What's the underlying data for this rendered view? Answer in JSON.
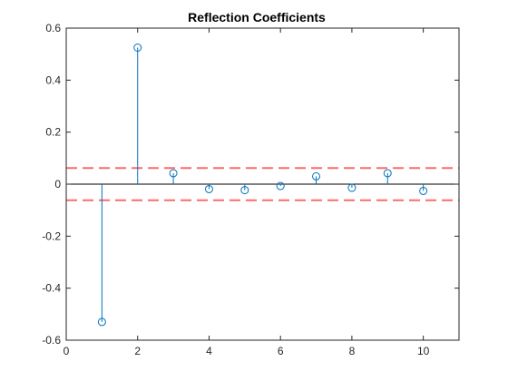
{
  "chart_data": {
    "type": "stem",
    "title": "Reflection Coefficients",
    "xlabel": "",
    "ylabel": "",
    "xlim": [
      0,
      11
    ],
    "ylim": [
      -0.6,
      0.6
    ],
    "xticks": [
      0,
      2,
      4,
      6,
      8,
      10
    ],
    "xtick_labels": [
      "0",
      "2",
      "4",
      "6",
      "8",
      "10"
    ],
    "yticks": [
      -0.6,
      -0.4,
      -0.2,
      0,
      0.2,
      0.4,
      0.6
    ],
    "ytick_labels": [
      "-0.6",
      "-0.4",
      "-0.2",
      "0",
      "0.2",
      "0.4",
      "0.6"
    ],
    "grid": false,
    "series": [
      {
        "x": [
          1,
          2,
          3,
          4,
          5,
          6,
          7,
          8,
          9,
          10
        ],
        "values": [
          -0.53,
          0.525,
          0.042,
          -0.019,
          -0.023,
          -0.007,
          0.03,
          -0.014,
          0.042,
          -0.026
        ],
        "color": "#0072BD",
        "marker": "circle"
      }
    ],
    "reference_lines": [
      {
        "y": 0.062,
        "color": "#FF6A6A",
        "style": "dashed"
      },
      {
        "y": -0.062,
        "color": "#FF6A6A",
        "style": "dashed"
      },
      {
        "y": 0,
        "color": "#000000",
        "style": "solid"
      }
    ]
  }
}
